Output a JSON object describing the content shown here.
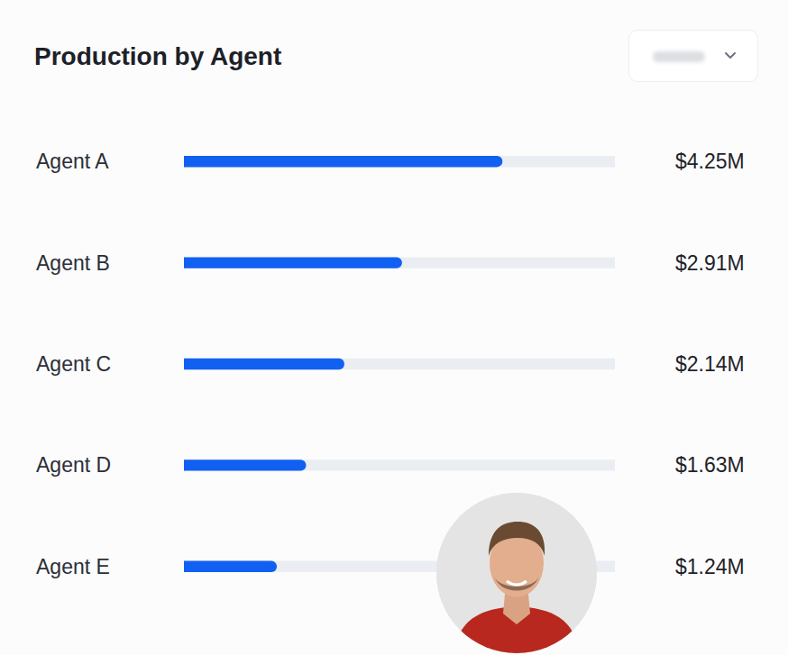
{
  "chart_data": {
    "type": "bar",
    "title": "Production by Agent",
    "orientation": "horizontal",
    "categories": [
      "Agent A",
      "Agent B",
      "Agent C",
      "Agent D",
      "Agent E"
    ],
    "values": [
      4.25,
      2.91,
      2.14,
      1.63,
      1.24
    ],
    "value_labels": [
      "$4.25M",
      "$2.91M",
      "$2.14M",
      "$1.63M",
      "$1.24M"
    ],
    "data_labels": true,
    "color": "#1160f2",
    "xlim": [
      0,
      5.75
    ],
    "tick_labels": false,
    "grid": false
  }
}
